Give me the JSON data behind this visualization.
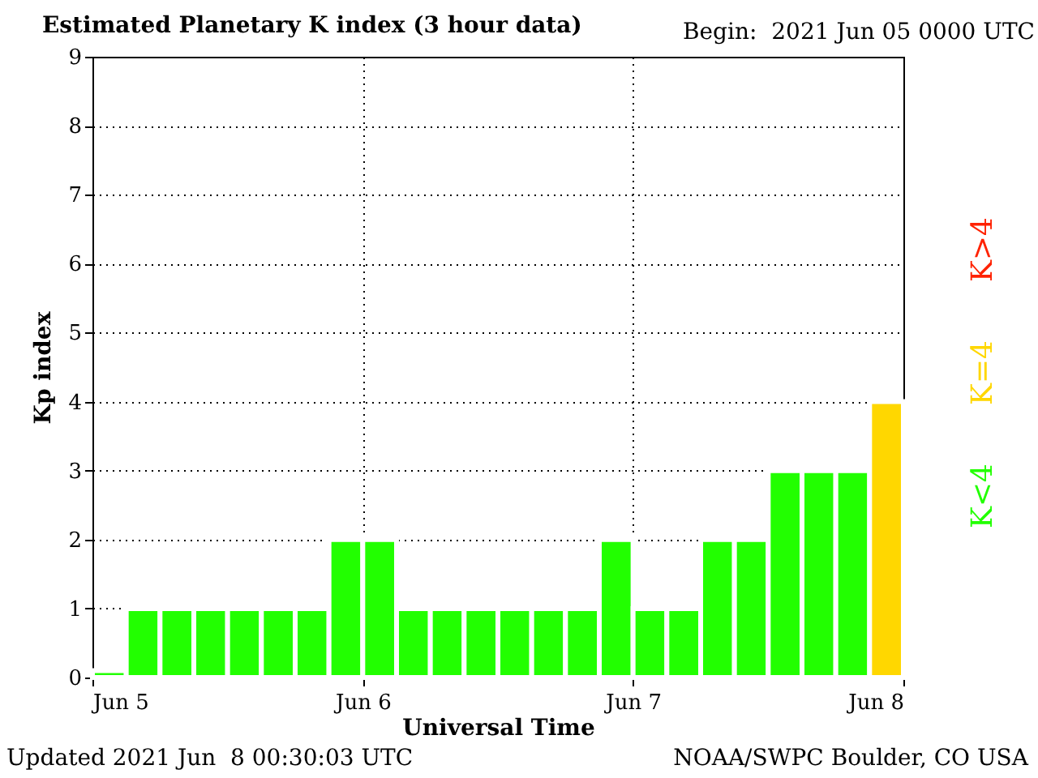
{
  "chart_data": {
    "type": "bar",
    "title": "Estimated Planetary K index (3 hour data)",
    "subtitle": "Begin:  2021 Jun 05 0000 UTC",
    "xlabel": "Universal Time",
    "ylabel": "Kp index",
    "annotations": [
      "Updated 2021 Jun  8 00:30:03 UTC",
      "NOAA/SWPC Boulder, CO USA"
    ],
    "x": [
      "2021-06-05T00:00",
      "2021-06-05T03:00",
      "2021-06-05T06:00",
      "2021-06-05T09:00",
      "2021-06-05T12:00",
      "2021-06-05T15:00",
      "2021-06-05T18:00",
      "2021-06-05T21:00",
      "2021-06-06T00:00",
      "2021-06-06T03:00",
      "2021-06-06T06:00",
      "2021-06-06T09:00",
      "2021-06-06T12:00",
      "2021-06-06T15:00",
      "2021-06-06T18:00",
      "2021-06-06T21:00",
      "2021-06-07T00:00",
      "2021-06-07T03:00",
      "2021-06-07T06:00",
      "2021-06-07T09:00",
      "2021-06-07T12:00",
      "2021-06-07T15:00",
      "2021-06-07T18:00",
      "2021-06-07T21:00"
    ],
    "series": [
      {
        "name": "K<4",
        "color": "#22ff00",
        "values": [
          0.1,
          1,
          1,
          1,
          1,
          1,
          1,
          2,
          2,
          1,
          1,
          1,
          1,
          1,
          1,
          2,
          1,
          1,
          2,
          2,
          3,
          3,
          3,
          null
        ]
      },
      {
        "name": "K=4",
        "color": "#ffd700",
        "values": [
          null,
          null,
          null,
          null,
          null,
          null,
          null,
          null,
          null,
          null,
          null,
          null,
          null,
          null,
          null,
          null,
          null,
          null,
          null,
          null,
          null,
          null,
          null,
          4
        ]
      },
      {
        "name": "K>4",
        "color": "#ff2200",
        "values": [
          null,
          null,
          null,
          null,
          null,
          null,
          null,
          null,
          null,
          null,
          null,
          null,
          null,
          null,
          null,
          null,
          null,
          null,
          null,
          null,
          null,
          null,
          null,
          null
        ]
      }
    ],
    "xlim": [
      "2021-06-05",
      "2021-06-08"
    ],
    "xticks": [
      {
        "value": "2021-06-05",
        "label": "Jun 5"
      },
      {
        "value": "2021-06-06",
        "label": "Jun 6"
      },
      {
        "value": "2021-06-07",
        "label": "Jun 7"
      },
      {
        "value": "2021-06-08",
        "label": "Jun 8"
      }
    ],
    "ylim": [
      0,
      9
    ],
    "yticks": [
      0,
      1,
      2,
      3,
      4,
      5,
      6,
      7,
      8,
      9
    ],
    "grid": true,
    "legend": "right"
  }
}
